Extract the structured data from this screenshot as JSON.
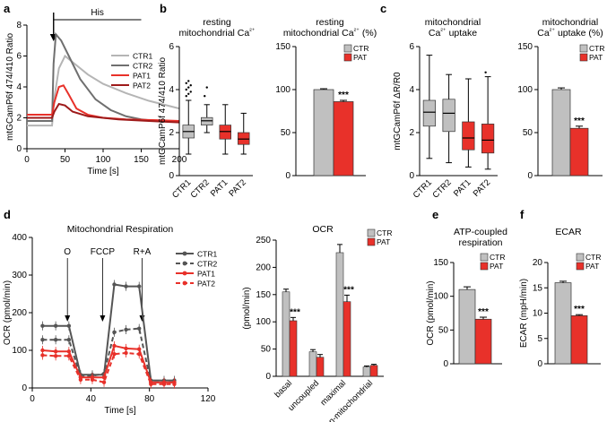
{
  "panels": {
    "a": "a",
    "b": "b",
    "c": "c",
    "d": "d",
    "e": "e",
    "f": "f"
  },
  "colors": {
    "ctr": "#c0c0c0",
    "pat": "#e8312a",
    "ctr1": "#b5b5b5",
    "ctr2": "#6f6f6f",
    "pat1": "#e8312a",
    "pat2": "#9e1a1a",
    "dark": "#555555"
  },
  "chart_data": [
    {
      "id": "a",
      "type": "line",
      "xlabel": "Time [s]",
      "ylabel": "mtGCamP6f 474/410 Ratio",
      "xlim": [
        0,
        200
      ],
      "ylim": [
        0,
        8
      ],
      "xticks": [
        0,
        50,
        100,
        150,
        200
      ],
      "yticks": [
        0,
        2,
        4,
        6,
        8
      ],
      "annotation": {
        "label": "His",
        "x_start": 35,
        "x_end": 150,
        "arrow_x": 35
      },
      "legend": [
        "CTR1",
        "CTR2",
        "PAT1",
        "PAT2"
      ],
      "series": [
        {
          "name": "CTR1",
          "x": [
            0,
            33,
            36,
            42,
            50,
            60,
            80,
            100,
            130,
            160,
            200
          ],
          "y": [
            1.5,
            1.5,
            3.3,
            5.2,
            6.0,
            5.6,
            4.8,
            4.2,
            3.6,
            3.1,
            2.6
          ]
        },
        {
          "name": "CTR2",
          "x": [
            0,
            33,
            35,
            38,
            45,
            55,
            70,
            90,
            110,
            130,
            150,
            170,
            200
          ],
          "y": [
            1.8,
            1.8,
            5.5,
            7.4,
            7.0,
            6.0,
            4.5,
            3.2,
            2.5,
            2.1,
            1.9,
            1.8,
            1.8
          ]
        },
        {
          "name": "PAT1",
          "x": [
            0,
            33,
            36,
            42,
            48,
            55,
            65,
            80,
            100,
            130,
            170,
            200
          ],
          "y": [
            2.2,
            2.2,
            3.0,
            4.0,
            4.1,
            3.5,
            2.6,
            2.2,
            2.0,
            1.9,
            1.85,
            1.8
          ]
        },
        {
          "name": "PAT2",
          "x": [
            0,
            33,
            36,
            42,
            50,
            60,
            80,
            120,
            160,
            200
          ],
          "y": [
            2.0,
            2.0,
            2.4,
            2.9,
            2.8,
            2.4,
            2.1,
            1.9,
            1.8,
            1.7
          ]
        }
      ]
    },
    {
      "id": "b1",
      "type": "box",
      "title": "resting mitochondrial Ca²⁺",
      "ylabel": "mtGCamP6f 474/410 Ratio",
      "ylim": [
        0,
        6
      ],
      "yticks": [
        0,
        2,
        4,
        6
      ],
      "categories": [
        "CTR1",
        "CTR2",
        "PAT1",
        "PAT2"
      ],
      "boxes": [
        {
          "name": "CTR1",
          "min": 1.0,
          "q1": 1.75,
          "median": 2.05,
          "q3": 2.35,
          "max": 3.5,
          "outliers": [
            3.7,
            3.8,
            3.9,
            4.0,
            4.1,
            4.2,
            4.3,
            4.4
          ]
        },
        {
          "name": "CTR2",
          "min": 2.0,
          "q1": 2.35,
          "median": 2.55,
          "q3": 2.7,
          "max": 3.3,
          "outliers": [
            3.7,
            4.1
          ]
        },
        {
          "name": "PAT1",
          "min": 1.0,
          "q1": 1.7,
          "median": 2.05,
          "q3": 2.35,
          "max": 3.3,
          "outliers": []
        },
        {
          "name": "PAT2",
          "min": 1.0,
          "q1": 1.45,
          "median": 1.7,
          "q3": 2.0,
          "max": 2.9,
          "outliers": []
        }
      ]
    },
    {
      "id": "b2",
      "type": "bar",
      "title": "resting mitochondrial Ca²⁺ (%)",
      "ylim": [
        0,
        150
      ],
      "yticks": [
        0,
        50,
        100,
        150
      ],
      "categories": [
        "CTR",
        "PAT"
      ],
      "values": [
        100,
        86
      ],
      "errors": [
        1,
        1.5
      ],
      "significance": "***",
      "legend": [
        "CTR",
        "PAT"
      ]
    },
    {
      "id": "c1",
      "type": "box",
      "title": "mitochondrial Ca²⁺ uptake",
      "ylabel": "mtGCamP6f ΔR/R0",
      "ylim": [
        0,
        6
      ],
      "yticks": [
        0,
        2,
        4,
        6
      ],
      "categories": [
        "CTR1",
        "CTR2",
        "PAT1",
        "PAT2"
      ],
      "boxes": [
        {
          "name": "CTR1",
          "min": 0.8,
          "q1": 2.3,
          "median": 2.95,
          "q3": 3.5,
          "max": 5.6,
          "outliers": []
        },
        {
          "name": "CTR2",
          "min": 0.6,
          "q1": 2.05,
          "median": 2.9,
          "q3": 3.55,
          "max": 4.7,
          "outliers": []
        },
        {
          "name": "PAT1",
          "min": 0.4,
          "q1": 1.2,
          "median": 1.75,
          "q3": 2.5,
          "max": 4.5,
          "outliers": []
        },
        {
          "name": "PAT2",
          "min": 0.3,
          "q1": 1.05,
          "median": 1.65,
          "q3": 2.4,
          "max": 4.6,
          "outliers": [
            4.8
          ]
        }
      ]
    },
    {
      "id": "c2",
      "type": "bar",
      "title": "mitochondrial Ca²⁺ uptake (%)",
      "ylim": [
        0,
        150
      ],
      "yticks": [
        0,
        50,
        100,
        150
      ],
      "categories": [
        "CTR",
        "PAT"
      ],
      "values": [
        100,
        55
      ],
      "errors": [
        2,
        2.5
      ],
      "significance": "***",
      "legend": [
        "CTR",
        "PAT"
      ]
    },
    {
      "id": "d1",
      "type": "line",
      "title": "Mitochondrial Respiration",
      "xlabel": "Time [s]",
      "ylabel": "OCR (pmol/min)",
      "xlim": [
        0,
        120
      ],
      "ylim": [
        0,
        400
      ],
      "xticks": [
        0,
        40,
        80,
        120
      ],
      "yticks": [
        0,
        100,
        200,
        300,
        400
      ],
      "injections": [
        {
          "label": "O",
          "x": 24
        },
        {
          "label": "FCCP",
          "x": 48
        },
        {
          "label": "R+A",
          "x": 75
        }
      ],
      "legend": [
        "CTR1",
        "CTR2",
        "PAT1",
        "PAT2"
      ],
      "x": [
        7,
        16,
        25,
        33,
        41,
        49,
        56,
        64,
        73,
        81,
        90,
        97
      ],
      "series": [
        {
          "name": "CTR1",
          "y": [
            165,
            165,
            165,
            35,
            35,
            35,
            275,
            270,
            270,
            20,
            20,
            20
          ]
        },
        {
          "name": "CTR2",
          "y": [
            128,
            128,
            128,
            30,
            32,
            38,
            148,
            155,
            158,
            15,
            15,
            15
          ]
        },
        {
          "name": "PAT1",
          "y": [
            100,
            97,
            97,
            28,
            28,
            28,
            112,
            105,
            103,
            15,
            15,
            15
          ]
        },
        {
          "name": "PAT2",
          "y": [
            87,
            85,
            85,
            22,
            22,
            15,
            90,
            93,
            90,
            10,
            10,
            10
          ]
        }
      ]
    },
    {
      "id": "d2",
      "type": "bar",
      "title": "OCR",
      "ylabel": "(pmol/min)",
      "ylim": [
        0,
        250
      ],
      "yticks": [
        0,
        50,
        100,
        150,
        200,
        250
      ],
      "categories": [
        "basal",
        "uncoupled",
        "maximal",
        "non-mitochondrial"
      ],
      "series": [
        {
          "name": "CTR",
          "values": [
            155,
            45,
            227,
            17
          ],
          "errors": [
            5,
            4,
            15,
            2
          ]
        },
        {
          "name": "PAT",
          "values": [
            102,
            35,
            137,
            20
          ],
          "errors": [
            6,
            5,
            12,
            2
          ]
        }
      ],
      "significance": [
        {
          "category": "basal",
          "label": "***"
        },
        {
          "category": "maximal",
          "label": "***"
        }
      ],
      "legend": [
        "CTR",
        "PAT"
      ]
    },
    {
      "id": "e",
      "type": "bar",
      "title": "ATP-coupled respiration",
      "ylabel": "OCR (pmol/min)",
      "ylim": [
        0,
        150
      ],
      "yticks": [
        0,
        50,
        100,
        150
      ],
      "categories": [
        "CTR",
        "PAT"
      ],
      "values": [
        110,
        66
      ],
      "errors": [
        4,
        3
      ],
      "significance": "***",
      "legend": [
        "CTR",
        "PAT"
      ]
    },
    {
      "id": "f",
      "type": "bar",
      "title": "ECAR",
      "ylabel": "ECAR (mpH/min)",
      "ylim": [
        0,
        20
      ],
      "yticks": [
        0,
        5,
        10,
        15,
        20
      ],
      "categories": [
        "CTR",
        "PAT"
      ],
      "values": [
        16,
        9.5
      ],
      "errors": [
        0.3,
        0.2
      ],
      "significance": "***",
      "legend": [
        "CTR",
        "PAT"
      ]
    }
  ]
}
